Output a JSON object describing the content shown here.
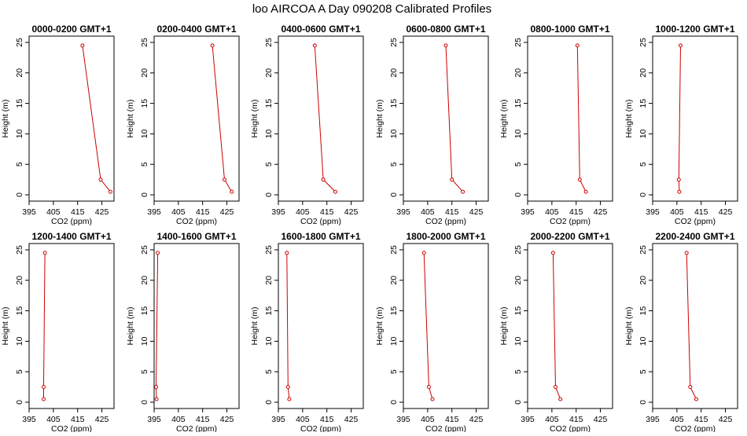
{
  "page_title": "loo AIRCOA A  Day 090208  Calibrated Profiles",
  "colors": {
    "line": "#cc0000",
    "axis": "#000000",
    "background": "#ffffff"
  },
  "chart_data": [
    {
      "type": "line",
      "title": "0000-0200 GMT+1",
      "xlabel": "CO2 (ppm)",
      "ylabel": "Height (m)",
      "xlim": [
        395,
        430
      ],
      "ylim": [
        0,
        25
      ],
      "xticks": [
        395,
        405,
        415,
        425
      ],
      "yticks": [
        0,
        5,
        10,
        15,
        20,
        25
      ],
      "series": [
        {
          "x": [
            428.5,
            424.5,
            417.0
          ],
          "y": [
            0.5,
            2.5,
            24.5
          ]
        }
      ]
    },
    {
      "type": "line",
      "title": "0200-0400 GMT+1",
      "xlabel": "CO2 (ppm)",
      "ylabel": "Height (m)",
      "xlim": [
        395,
        430
      ],
      "ylim": [
        0,
        25
      ],
      "xticks": [
        395,
        405,
        415,
        425
      ],
      "yticks": [
        0,
        5,
        10,
        15,
        20,
        25
      ],
      "series": [
        {
          "x": [
            427.0,
            424.0,
            419.0
          ],
          "y": [
            0.5,
            2.5,
            24.5
          ]
        }
      ]
    },
    {
      "type": "line",
      "title": "0400-0600 GMT+1",
      "xlabel": "CO2 (ppm)",
      "ylabel": "Height (m)",
      "xlim": [
        395,
        430
      ],
      "ylim": [
        0,
        25
      ],
      "xticks": [
        395,
        405,
        415,
        425
      ],
      "yticks": [
        0,
        5,
        10,
        15,
        20,
        25
      ],
      "series": [
        {
          "x": [
            418.5,
            413.5,
            410.0
          ],
          "y": [
            0.5,
            2.5,
            24.5
          ]
        }
      ]
    },
    {
      "type": "line",
      "title": "0600-0800 GMT+1",
      "xlabel": "CO2 (ppm)",
      "ylabel": "Height (m)",
      "xlim": [
        395,
        430
      ],
      "ylim": [
        0,
        25
      ],
      "xticks": [
        395,
        405,
        415,
        425
      ],
      "yticks": [
        0,
        5,
        10,
        15,
        20,
        25
      ],
      "series": [
        {
          "x": [
            419.5,
            415.0,
            412.5
          ],
          "y": [
            0.5,
            2.5,
            24.5
          ]
        }
      ]
    },
    {
      "type": "line",
      "title": "0800-1000 GMT+1",
      "xlabel": "CO2 (ppm)",
      "ylabel": "Height (m)",
      "xlim": [
        395,
        430
      ],
      "ylim": [
        0,
        25
      ],
      "xticks": [
        395,
        405,
        415,
        425
      ],
      "yticks": [
        0,
        5,
        10,
        15,
        20,
        25
      ],
      "series": [
        {
          "x": [
            419.0,
            416.5,
            415.5
          ],
          "y": [
            0.5,
            2.5,
            24.5
          ]
        }
      ]
    },
    {
      "type": "line",
      "title": "1000-1200 GMT+1",
      "xlabel": "CO2 (ppm)",
      "ylabel": "Height (m)",
      "xlim": [
        395,
        430
      ],
      "ylim": [
        0,
        25
      ],
      "xticks": [
        395,
        405,
        415,
        425
      ],
      "yticks": [
        0,
        5,
        10,
        15,
        20,
        25
      ],
      "series": [
        {
          "x": [
            406.0,
            405.8,
            406.5
          ],
          "y": [
            0.5,
            2.5,
            24.5
          ]
        }
      ]
    },
    {
      "type": "line",
      "title": "1200-1400 GMT+1",
      "xlabel": "CO2 (ppm)",
      "ylabel": "Height (m)",
      "xlim": [
        395,
        430
      ],
      "ylim": [
        0,
        25
      ],
      "xticks": [
        395,
        405,
        415,
        425
      ],
      "yticks": [
        0,
        5,
        10,
        15,
        20,
        25
      ],
      "series": [
        {
          "x": [
            401.0,
            401.0,
            401.5
          ],
          "y": [
            0.5,
            2.5,
            24.5
          ]
        }
      ]
    },
    {
      "type": "line",
      "title": "1400-1600 GMT+1",
      "xlabel": "CO2 (ppm)",
      "ylabel": "Height (m)",
      "xlim": [
        395,
        430
      ],
      "ylim": [
        0,
        25
      ],
      "xticks": [
        395,
        405,
        415,
        425
      ],
      "yticks": [
        0,
        5,
        10,
        15,
        20,
        25
      ],
      "series": [
        {
          "x": [
            396.0,
            395.8,
            396.5
          ],
          "y": [
            0.5,
            2.5,
            24.5
          ]
        }
      ]
    },
    {
      "type": "line",
      "title": "1600-1800 GMT+1",
      "xlabel": "CO2 (ppm)",
      "ylabel": "Height (m)",
      "xlim": [
        395,
        430
      ],
      "ylim": [
        0,
        25
      ],
      "xticks": [
        395,
        405,
        415,
        425
      ],
      "yticks": [
        0,
        5,
        10,
        15,
        20,
        25
      ],
      "series": [
        {
          "x": [
            399.5,
            399.0,
            398.5
          ],
          "y": [
            0.5,
            2.5,
            24.5
          ]
        }
      ]
    },
    {
      "type": "line",
      "title": "1800-2000 GMT+1",
      "xlabel": "CO2 (ppm)",
      "ylabel": "Height (m)",
      "xlim": [
        395,
        430
      ],
      "ylim": [
        0,
        25
      ],
      "xticks": [
        395,
        405,
        415,
        425
      ],
      "yticks": [
        0,
        5,
        10,
        15,
        20,
        25
      ],
      "series": [
        {
          "x": [
            407.0,
            405.5,
            403.5
          ],
          "y": [
            0.5,
            2.5,
            24.5
          ]
        }
      ]
    },
    {
      "type": "line",
      "title": "2000-2200 GMT+1",
      "xlabel": "CO2 (ppm)",
      "ylabel": "Height (m)",
      "xlim": [
        395,
        430
      ],
      "ylim": [
        0,
        25
      ],
      "xticks": [
        395,
        405,
        415,
        425
      ],
      "yticks": [
        0,
        5,
        10,
        15,
        20,
        25
      ],
      "series": [
        {
          "x": [
            408.5,
            406.5,
            405.5
          ],
          "y": [
            0.5,
            2.5,
            24.5
          ]
        }
      ]
    },
    {
      "type": "line",
      "title": "2200-2400 GMT+1",
      "xlabel": "CO2 (ppm)",
      "ylabel": "Height (m)",
      "xlim": [
        395,
        430
      ],
      "ylim": [
        0,
        25
      ],
      "xticks": [
        395,
        405,
        415,
        425
      ],
      "yticks": [
        0,
        5,
        10,
        15,
        20,
        25
      ],
      "series": [
        {
          "x": [
            413.0,
            410.5,
            409.0
          ],
          "y": [
            0.5,
            2.5,
            24.5
          ]
        }
      ]
    }
  ]
}
